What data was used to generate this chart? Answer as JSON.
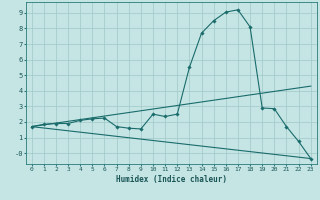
{
  "xlabel": "Humidex (Indice chaleur)",
  "background_color": "#c5e5e5",
  "grid_color": "#a0c8c8",
  "line_color": "#1a6b6b",
  "xlim": [
    -0.5,
    23.5
  ],
  "ylim": [
    -0.7,
    9.7
  ],
  "curve1_x": [
    0,
    1,
    2,
    3,
    4,
    5,
    6,
    7,
    8,
    9,
    10,
    11,
    12,
    13,
    14,
    15,
    16,
    17,
    18,
    19,
    20,
    21,
    22,
    23
  ],
  "curve1_y": [
    1.7,
    1.85,
    1.9,
    1.9,
    2.1,
    2.2,
    2.25,
    1.7,
    1.6,
    1.55,
    2.5,
    2.35,
    2.5,
    5.5,
    7.7,
    8.5,
    9.05,
    9.2,
    8.1,
    2.9,
    2.85,
    1.7,
    0.75,
    -0.35
  ],
  "line1_x": [
    0,
    23
  ],
  "line1_y": [
    1.7,
    4.3
  ],
  "line2_x": [
    0,
    23
  ],
  "line2_y": [
    1.7,
    -0.35
  ]
}
